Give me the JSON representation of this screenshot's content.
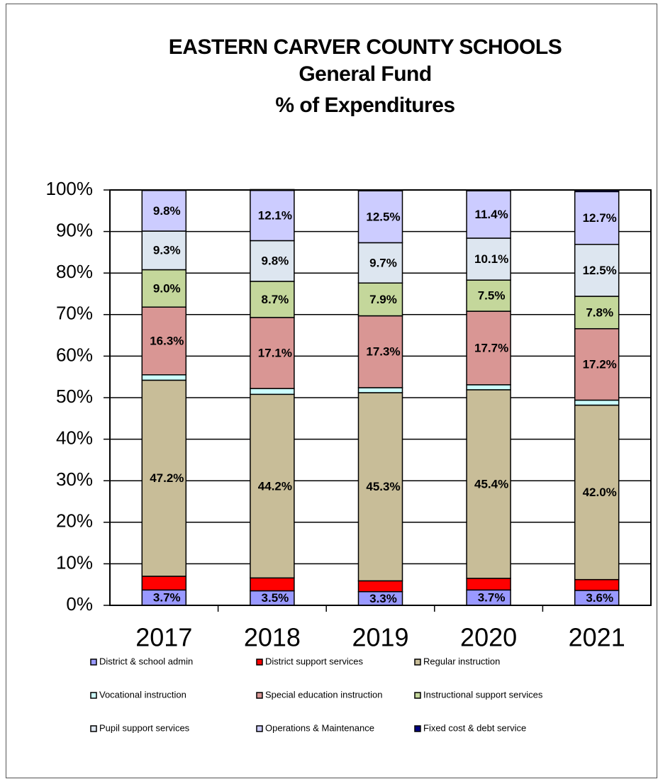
{
  "chart_data": {
    "type": "stacked_bar",
    "title": [
      "EASTERN CARVER COUNTY SCHOOLS",
      "General Fund",
      "% of Expenditures"
    ],
    "categories": [
      "2017",
      "2018",
      "2019",
      "2020",
      "2021"
    ],
    "ylim": [
      0,
      100
    ],
    "yticks": [
      {
        "value": 0,
        "label": "0%"
      },
      {
        "value": 10,
        "label": "10%"
      },
      {
        "value": 20,
        "label": "20%"
      },
      {
        "value": 30,
        "label": "30%"
      },
      {
        "value": 40,
        "label": "40%"
      },
      {
        "value": 50,
        "label": "50%"
      },
      {
        "value": 60,
        "label": "60%"
      },
      {
        "value": 70,
        "label": "70%"
      },
      {
        "value": 80,
        "label": "80%"
      },
      {
        "value": 90,
        "label": "90%"
      },
      {
        "value": 100,
        "label": "100%"
      }
    ],
    "grid": true,
    "legend": "bottom",
    "series": [
      {
        "name": "District & school admin",
        "color": "#9999ff",
        "values": [
          3.7,
          3.5,
          3.3,
          3.7,
          3.6
        ],
        "value_labels": [
          "3.7%",
          "3.5%",
          "3.3%",
          "3.7%",
          "3.6%"
        ]
      },
      {
        "name": "District support services",
        "color": "#ff0000",
        "values": [
          3.3,
          3.1,
          2.6,
          2.8,
          2.6
        ]
      },
      {
        "name": "Regular instruction",
        "color": "#c8bd98",
        "values": [
          47.2,
          44.2,
          45.3,
          45.4,
          42.0
        ],
        "value_labels": [
          "47.2%",
          "44.2%",
          "45.3%",
          "45.4%",
          "42.0%"
        ]
      },
      {
        "name": "Vocational instruction",
        "color": "#ccffff",
        "values": [
          1.3,
          1.4,
          1.2,
          1.2,
          1.2
        ]
      },
      {
        "name": "Special education instruction",
        "color": "#d99694",
        "label_color": "#ffffff",
        "values": [
          16.3,
          17.1,
          17.3,
          17.7,
          17.2
        ],
        "value_labels": [
          "16.3%",
          "17.1%",
          "17.3%",
          "17.7%",
          "17.2%"
        ]
      },
      {
        "name": "Instructional support services",
        "color": "#c4d79b",
        "values": [
          9.0,
          8.7,
          7.9,
          7.5,
          7.8
        ],
        "value_labels": [
          "9.0%",
          "8.7%",
          "7.9%",
          "7.5%",
          "7.8%"
        ]
      },
      {
        "name": "Pupil support services",
        "color": "#dde6f0",
        "values": [
          9.3,
          9.8,
          9.7,
          10.1,
          12.5
        ],
        "value_labels": [
          "9.3%",
          "9.8%",
          "9.7%",
          "10.1%",
          "12.5%"
        ]
      },
      {
        "name": "Operations & Maintenance",
        "color": "#ccccff",
        "values": [
          9.8,
          12.1,
          12.5,
          11.4,
          12.7
        ],
        "value_labels": [
          "9.8%",
          "12.1%",
          "12.5%",
          "11.4%",
          "12.7%"
        ]
      },
      {
        "name": "Fixed cost & debt service",
        "color": "#000080",
        "values": [
          0.1,
          0.2,
          0.2,
          0.2,
          0.4
        ]
      }
    ]
  }
}
